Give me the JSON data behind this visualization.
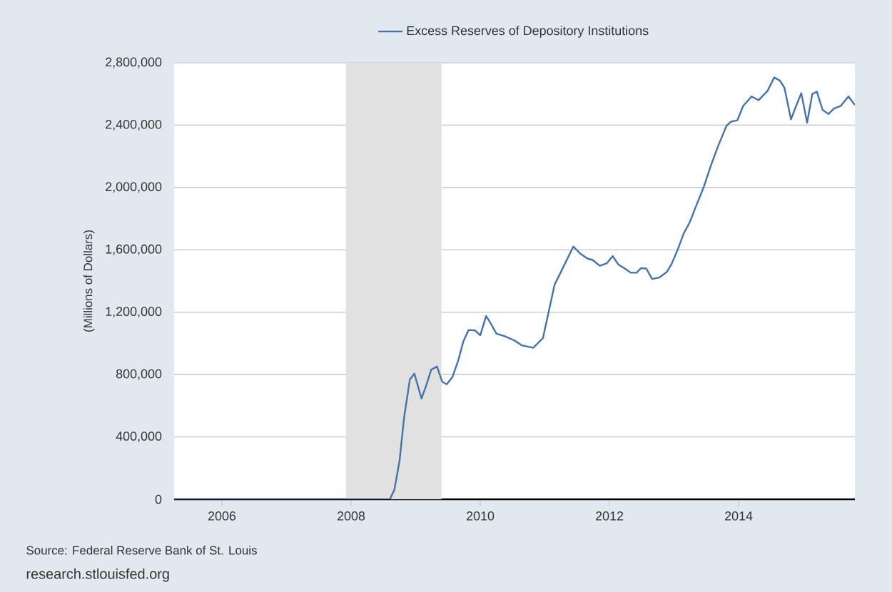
{
  "chart_data": {
    "type": "line",
    "ylabel": "(Millions of Dollars)",
    "annotations": [
      "Source: Federal Reserve Bank of St. Louis",
      "research.stlouisfed.org"
    ],
    "xlim": [
      2005.26,
      2015.8
    ],
    "xticks": [
      2006,
      2008,
      2010,
      2012,
      2014
    ],
    "ylim": [
      0,
      2800000
    ],
    "yticks": [
      0,
      {
        "value": 400000,
        "label": "400,000"
      },
      {
        "value": 800000,
        "label": "800,000"
      },
      {
        "value": 1200000,
        "label": "1,200,000"
      },
      {
        "value": 1600000,
        "label": "1,600,000"
      },
      {
        "value": 2000000,
        "label": "2,000,000"
      },
      {
        "value": 2400000,
        "label": "2,400,000"
      },
      {
        "value": 2800000,
        "label": "2,800,000"
      }
    ],
    "grid": "y",
    "legend": "top",
    "bands": [
      {
        "axis": "x",
        "from": 2007.92,
        "to": 2009.4,
        "color": "#e1e1e1"
      }
    ],
    "series": [
      {
        "name": "Excess Reserves of Depository Institutions",
        "color": "#4572a7",
        "x": [
          2005.26,
          2008.6,
          2008.67,
          2008.75,
          2008.82,
          2008.91,
          2008.98,
          2009.09,
          2009.17,
          2009.24,
          2009.33,
          2009.41,
          2009.48,
          2009.57,
          2009.66,
          2009.74,
          2009.82,
          2009.92,
          2010.0,
          2010.09,
          2010.16,
          2010.25,
          2010.38,
          2010.53,
          2010.64,
          2010.82,
          2010.97,
          2011.15,
          2011.26,
          2011.44,
          2011.55,
          2011.66,
          2011.74,
          2011.85,
          2011.96,
          2012.05,
          2012.14,
          2012.25,
          2012.33,
          2012.42,
          2012.49,
          2012.57,
          2012.66,
          2012.77,
          2012.89,
          2012.96,
          2013.06,
          2013.15,
          2013.24,
          2013.35,
          2013.46,
          2013.57,
          2013.68,
          2013.81,
          2013.88,
          2013.98,
          2014.07,
          2014.2,
          2014.31,
          2014.45,
          2014.55,
          2014.64,
          2014.71,
          2014.81,
          2014.89,
          2014.97,
          2015.06,
          2015.14,
          2015.21,
          2015.3,
          2015.39,
          2015.48,
          2015.58,
          2015.7,
          2015.8
        ],
        "values": [
          0,
          0,
          61000,
          246000,
          523000,
          769000,
          806000,
          646000,
          738000,
          831000,
          852000,
          754000,
          738000,
          785000,
          892000,
          1015000,
          1086000,
          1083000,
          1052000,
          1175000,
          1129000,
          1062000,
          1046000,
          1018000,
          988000,
          972000,
          1034000,
          1376000,
          1468000,
          1621000,
          1575000,
          1544000,
          1535000,
          1498000,
          1514000,
          1560000,
          1505000,
          1477000,
          1453000,
          1453000,
          1483000,
          1480000,
          1413000,
          1422000,
          1459000,
          1508000,
          1605000,
          1706000,
          1774000,
          1890000,
          2003000,
          2141000,
          2263000,
          2394000,
          2422000,
          2431000,
          2523000,
          2584000,
          2560000,
          2621000,
          2706000,
          2685000,
          2639000,
          2437000,
          2523000,
          2605000,
          2416000,
          2599000,
          2615000,
          2498000,
          2471000,
          2508000,
          2523000,
          2584000,
          2529000
        ]
      }
    ]
  }
}
